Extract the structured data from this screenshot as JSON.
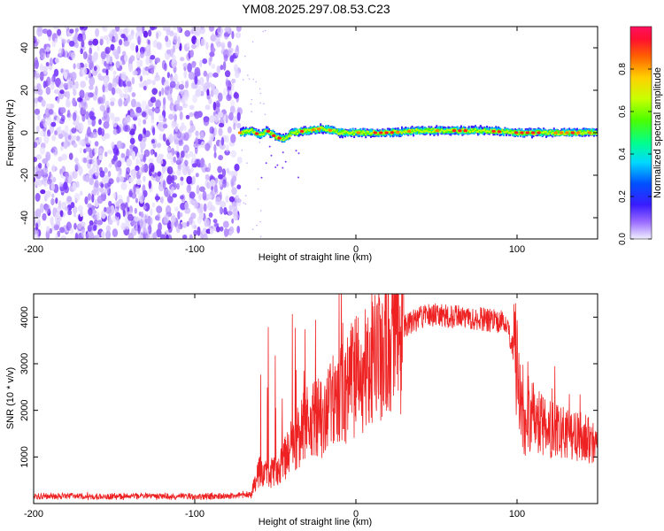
{
  "chart_data": [
    {
      "type": "heatmap",
      "title": "YM08.2025.297.08.53.C23",
      "xlabel": "Height of straight line (km)",
      "ylabel": "Frequency (Hz)",
      "xlim": [
        -200,
        150
      ],
      "ylim": [
        -50,
        50
      ],
      "x_ticks": [
        -200,
        -100,
        0,
        100
      ],
      "x_tick_labels": [
        "-200",
        "-100",
        "0",
        "100"
      ],
      "y_ticks": [
        -40,
        -20,
        0,
        20,
        40
      ],
      "y_tick_labels": [
        "-40",
        "-20",
        "0",
        "20",
        "40"
      ],
      "noise_region_x": [
        -200,
        -72
      ],
      "signal_track": [
        {
          "x": -72,
          "y": 0
        },
        {
          "x": -65,
          "y": 1
        },
        {
          "x": -60,
          "y": -1
        },
        {
          "x": -55,
          "y": 1
        },
        {
          "x": -50,
          "y": -2
        },
        {
          "x": -45,
          "y": -3
        },
        {
          "x": -40,
          "y": 0
        },
        {
          "x": -30,
          "y": 1
        },
        {
          "x": -20,
          "y": 2
        },
        {
          "x": -10,
          "y": 0
        },
        {
          "x": 0,
          "y": 0
        },
        {
          "x": 20,
          "y": 0
        },
        {
          "x": 40,
          "y": 1
        },
        {
          "x": 60,
          "y": 1
        },
        {
          "x": 80,
          "y": 1
        },
        {
          "x": 100,
          "y": 0
        },
        {
          "x": 120,
          "y": 0
        },
        {
          "x": 150,
          "y": 0
        }
      ],
      "colorbar": {
        "label": "Normalized spectral amplitude",
        "range": [
          0.0,
          1.0
        ],
        "ticks": [
          0.0,
          0.2,
          0.4,
          0.6,
          0.8
        ],
        "tick_labels": [
          "0.0",
          "0.2",
          "0.4",
          "0.6",
          "0.8"
        ]
      }
    },
    {
      "type": "line",
      "xlabel": "Height of straight line (km)",
      "ylabel": "SNR (10 * v/v)",
      "xlim": [
        -200,
        150
      ],
      "ylim": [
        0,
        4500
      ],
      "x_ticks": [
        -200,
        -100,
        0,
        100
      ],
      "x_tick_labels": [
        "-200",
        "-100",
        "0",
        "100"
      ],
      "y_ticks": [
        1000,
        2000,
        3000,
        4000
      ],
      "y_tick_labels": [
        "1000",
        "2000",
        "3000",
        "4000"
      ],
      "series": [
        {
          "name": "SNR",
          "color": "#ee2222",
          "points": [
            {
              "x": -200,
              "y": 150
            },
            {
              "x": -180,
              "y": 160
            },
            {
              "x": -160,
              "y": 150
            },
            {
              "x": -140,
              "y": 155
            },
            {
              "x": -120,
              "y": 160
            },
            {
              "x": -100,
              "y": 150
            },
            {
              "x": -80,
              "y": 160
            },
            {
              "x": -65,
              "y": 200
            },
            {
              "x": -60,
              "y": 700
            },
            {
              "x": -55,
              "y": 600
            },
            {
              "x": -50,
              "y": 700
            },
            {
              "x": -45,
              "y": 900
            },
            {
              "x": -40,
              "y": 1200
            },
            {
              "x": -35,
              "y": 1500
            },
            {
              "x": -30,
              "y": 1700
            },
            {
              "x": -25,
              "y": 1800
            },
            {
              "x": -20,
              "y": 1900
            },
            {
              "x": -15,
              "y": 2100
            },
            {
              "x": -10,
              "y": 2300
            },
            {
              "x": 0,
              "y": 2700
            },
            {
              "x": 10,
              "y": 3100
            },
            {
              "x": 20,
              "y": 3500
            },
            {
              "x": 30,
              "y": 3800
            },
            {
              "x": 40,
              "y": 4000
            },
            {
              "x": 50,
              "y": 4050
            },
            {
              "x": 60,
              "y": 4000
            },
            {
              "x": 70,
              "y": 4000
            },
            {
              "x": 80,
              "y": 3950
            },
            {
              "x": 90,
              "y": 3900
            },
            {
              "x": 95,
              "y": 3700
            },
            {
              "x": 100,
              "y": 3000
            },
            {
              "x": 102,
              "y": 2000
            },
            {
              "x": 105,
              "y": 1700
            },
            {
              "x": 110,
              "y": 1800
            },
            {
              "x": 120,
              "y": 1600
            },
            {
              "x": 130,
              "y": 1500
            },
            {
              "x": 140,
              "y": 1400
            },
            {
              "x": 150,
              "y": 1400
            }
          ]
        }
      ]
    }
  ]
}
